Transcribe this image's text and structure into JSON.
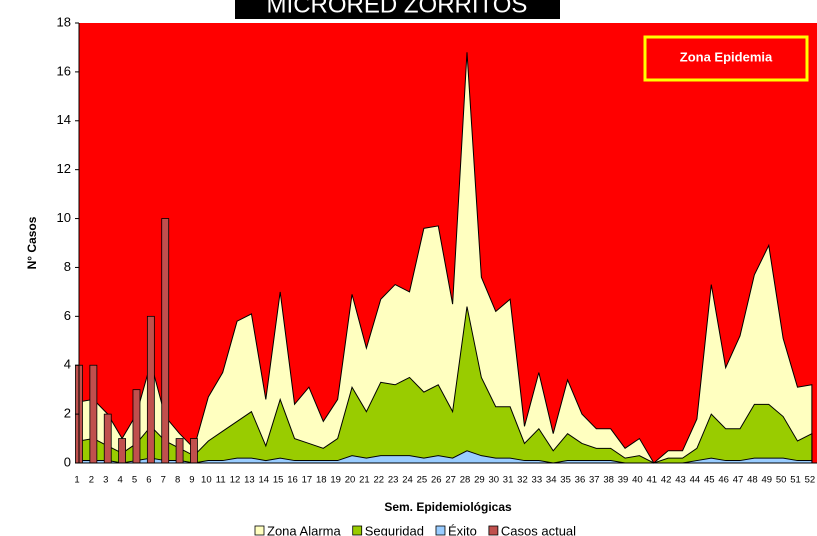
{
  "chart_data": {
    "type": "area",
    "title": "MICRORED ZORRITOS",
    "annotation": "Zona Epidemia",
    "epidemic_zone_color": "#ff0000",
    "x_label": "Sem. Epidemiológicas",
    "y_label": "N° Casos",
    "categories": [
      "1",
      "2",
      "3",
      "4",
      "5",
      "6",
      "7",
      "8",
      "9",
      "10",
      "11",
      "12",
      "13",
      "14",
      "15",
      "16",
      "17",
      "18",
      "19",
      "20",
      "21",
      "22",
      "23",
      "24",
      "25",
      "26",
      "27",
      "28",
      "29",
      "30",
      "31",
      "32",
      "33",
      "34",
      "35",
      "36",
      "37",
      "38",
      "39",
      "40",
      "41",
      "42",
      "43",
      "44",
      "45",
      "46",
      "47",
      "48",
      "49",
      "50",
      "51",
      "52"
    ],
    "ylim": [
      0,
      18
    ],
    "yticks": [
      0,
      2,
      4,
      6,
      8,
      10,
      12,
      14,
      16,
      18
    ],
    "series": [
      {
        "name": "Zona Alarma",
        "type": "area",
        "color": "#ffffc0",
        "values": [
          2.5,
          2.6,
          2.0,
          1.0,
          2.0,
          4.1,
          1.9,
          1.2,
          0.6,
          2.7,
          3.7,
          5.8,
          6.1,
          2.6,
          7.0,
          2.4,
          3.1,
          1.7,
          2.6,
          6.9,
          4.7,
          6.7,
          7.3,
          7.0,
          9.6,
          9.7,
          6.5,
          16.8,
          7.6,
          6.2,
          6.7,
          1.5,
          3.7,
          1.2,
          3.4,
          2.0,
          1.4,
          1.4,
          0.6,
          1.0,
          0.0,
          0.5,
          0.5,
          1.8,
          7.3,
          3.9,
          5.2,
          7.7,
          8.9,
          5.1,
          3.1,
          3.2
        ]
      },
      {
        "name": "Seguridad",
        "type": "area",
        "color": "#99cc00",
        "values": [
          0.9,
          1.0,
          0.7,
          0.4,
          0.8,
          1.5,
          0.9,
          0.6,
          0.3,
          0.9,
          1.3,
          1.7,
          2.1,
          0.7,
          2.6,
          1.0,
          0.8,
          0.6,
          1.0,
          3.1,
          2.1,
          3.3,
          3.2,
          3.5,
          2.9,
          3.2,
          2.1,
          6.4,
          3.5,
          2.3,
          2.3,
          0.8,
          1.4,
          0.5,
          1.2,
          0.8,
          0.6,
          0.6,
          0.2,
          0.3,
          0.0,
          0.2,
          0.2,
          0.6,
          2.0,
          1.4,
          1.4,
          2.4,
          2.4,
          1.9,
          0.9,
          1.2
        ]
      },
      {
        "name": "Éxito",
        "type": "area",
        "color": "#99ccff",
        "values": [
          0.1,
          0.1,
          0.1,
          0.0,
          0.1,
          0.2,
          0.1,
          0.1,
          0.0,
          0.1,
          0.1,
          0.2,
          0.2,
          0.1,
          0.2,
          0.1,
          0.1,
          0.1,
          0.1,
          0.3,
          0.2,
          0.3,
          0.3,
          0.3,
          0.2,
          0.3,
          0.2,
          0.5,
          0.3,
          0.2,
          0.2,
          0.1,
          0.1,
          0.0,
          0.1,
          0.1,
          0.1,
          0.1,
          0.0,
          0.0,
          0.0,
          0.0,
          0.0,
          0.1,
          0.2,
          0.1,
          0.1,
          0.2,
          0.2,
          0.2,
          0.1,
          0.1
        ]
      },
      {
        "name": "Casos actual",
        "type": "bar",
        "color": "#c0504d",
        "values": [
          4,
          4,
          2,
          1,
          3,
          6,
          10,
          1,
          1,
          null,
          null,
          null,
          null,
          null,
          null,
          null,
          null,
          null,
          null,
          null,
          null,
          null,
          null,
          null,
          null,
          null,
          null,
          null,
          null,
          null,
          null,
          null,
          null,
          null,
          null,
          null,
          null,
          null,
          null,
          null,
          null,
          null,
          null,
          null,
          null,
          null,
          null,
          null,
          null,
          null,
          null,
          null
        ]
      }
    ]
  }
}
